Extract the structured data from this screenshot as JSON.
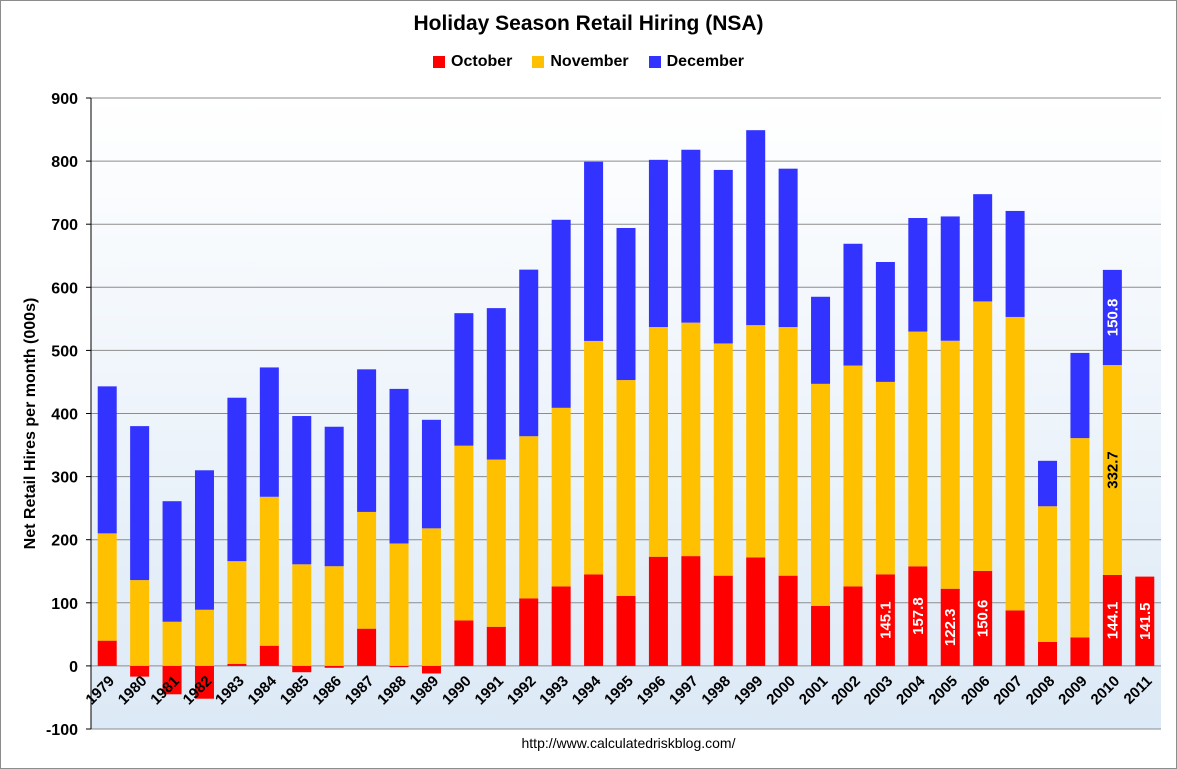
{
  "chart_data": {
    "type": "bar",
    "stacked": true,
    "title": "Holiday Season Retail Hiring (NSA)",
    "xlabel": "",
    "ylabel": "Net Retail Hires per month (000s)",
    "ylim": [
      -100,
      900
    ],
    "yticks": [
      -100,
      0,
      100,
      200,
      300,
      400,
      500,
      600,
      700,
      800,
      900
    ],
    "grid": true,
    "legend_position": "top",
    "categories": [
      "1979",
      "1980",
      "1981",
      "1982",
      "1983",
      "1984",
      "1985",
      "1986",
      "1987",
      "1988",
      "1989",
      "1990",
      "1991",
      "1992",
      "1993",
      "1994",
      "1995",
      "1996",
      "1997",
      "1998",
      "1999",
      "2000",
      "2001",
      "2002",
      "2003",
      "2004",
      "2005",
      "2006",
      "2007",
      "2008",
      "2009",
      "2010",
      "2011"
    ],
    "series": [
      {
        "name": "October",
        "color": "#ff0000",
        "values": [
          40,
          -17,
          -45,
          -52,
          3,
          32,
          -10,
          -3,
          59,
          -2,
          -12,
          72,
          62,
          107,
          126,
          145,
          111,
          173,
          174,
          143,
          172,
          143,
          95,
          126,
          145.1,
          157.8,
          122.3,
          150.6,
          88,
          38,
          45,
          144.1,
          141.5
        ]
      },
      {
        "name": "November",
        "color": "#ffc000",
        "values": [
          170,
          136,
          70,
          89,
          163,
          236,
          161,
          158,
          185,
          194,
          218,
          277,
          265,
          257,
          283,
          370,
          342,
          364,
          370,
          368,
          368,
          394,
          352,
          350,
          305,
          372,
          393,
          427,
          465,
          215,
          316,
          332.7,
          null
        ]
      },
      {
        "name": "December",
        "color": "#3333ff",
        "values": [
          233,
          244,
          191,
          221,
          259,
          205,
          235,
          221,
          226,
          245,
          172,
          210,
          240,
          264,
          298,
          284,
          241,
          265,
          274,
          275,
          309,
          251,
          138,
          193,
          190,
          180,
          197,
          170,
          168,
          72,
          135,
          150.8,
          null
        ]
      }
    ],
    "data_labels": [
      {
        "category": "2003",
        "series": "October",
        "text": "145.1",
        "color": "#ffffff"
      },
      {
        "category": "2004",
        "series": "October",
        "text": "157.8",
        "color": "#ffffff"
      },
      {
        "category": "2005",
        "series": "October",
        "text": "122.3",
        "color": "#ffffff"
      },
      {
        "category": "2006",
        "series": "October",
        "text": "150.6",
        "color": "#ffffff"
      },
      {
        "category": "2010",
        "series": "October",
        "text": "144.1",
        "color": "#ffffff"
      },
      {
        "category": "2011",
        "series": "October",
        "text": "141.5",
        "color": "#ffffff"
      },
      {
        "category": "2010",
        "series": "November",
        "text": "332.7",
        "color": "#000000"
      },
      {
        "category": "2010",
        "series": "December",
        "text": "150.8",
        "color": "#ffffff"
      }
    ],
    "source": "http://www.calculatedriskblog.com/"
  },
  "colors": {
    "plot_background_top": "#ffffff",
    "plot_background_bottom": "#dce9f6",
    "gridline": "#8c8c8c"
  }
}
